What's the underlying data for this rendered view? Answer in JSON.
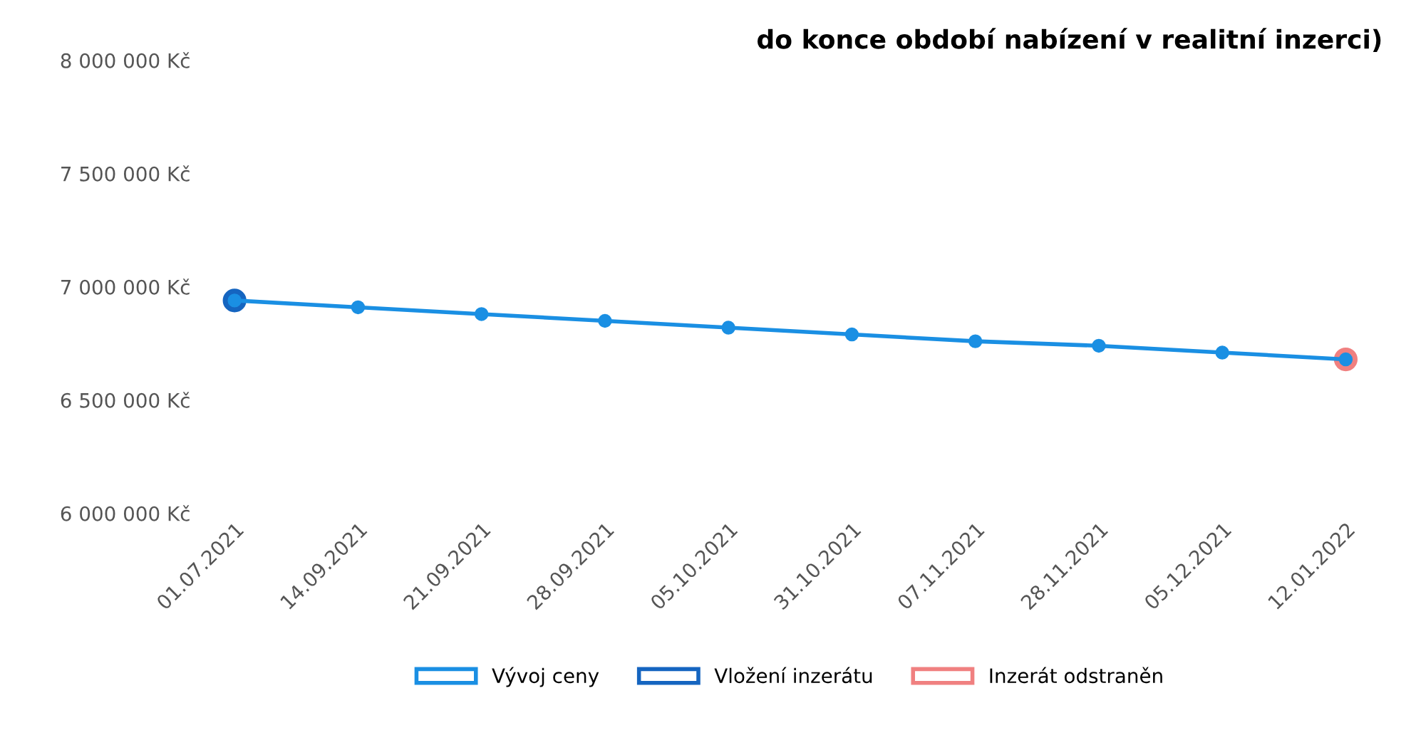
{
  "chart_data": {
    "type": "line",
    "title": "do konce období nabízení v realitní inzerci)",
    "categories": [
      "01.07.2021",
      "14.09.2021",
      "21.09.2021",
      "28.09.2021",
      "05.10.2021",
      "31.10.2021",
      "07.11.2021",
      "28.11.2021",
      "05.12.2021",
      "12.01.2022"
    ],
    "series": [
      {
        "name": "Vývoj ceny",
        "color": "#1a8fe3",
        "values": [
          6940000,
          6910000,
          6880000,
          6850000,
          6820000,
          6790000,
          6760000,
          6740000,
          6710000,
          6680000
        ]
      },
      {
        "name": "Vložení inzerátu",
        "type": "scatter",
        "color": "#1565c0",
        "values": [
          6940000,
          null,
          null,
          null,
          null,
          null,
          null,
          null,
          null,
          null
        ]
      },
      {
        "name": "Inzerát odstraněn",
        "type": "scatter",
        "color": "#f08080",
        "values": [
          null,
          null,
          null,
          null,
          null,
          null,
          null,
          null,
          null,
          6680000
        ]
      }
    ],
    "ylim": [
      6000000,
      8000000
    ],
    "yticks": [
      {
        "value": 6000000,
        "label": "6 000 000 Kč"
      },
      {
        "value": 6500000,
        "label": "6 500 000 Kč"
      },
      {
        "value": 7000000,
        "label": "7 000 000 Kč"
      },
      {
        "value": 7500000,
        "label": "7 500 000 Kč"
      },
      {
        "value": 8000000,
        "label": "8 000 000 Kč"
      }
    ],
    "marker": "circle",
    "legend": "bottom",
    "grid": false
  }
}
